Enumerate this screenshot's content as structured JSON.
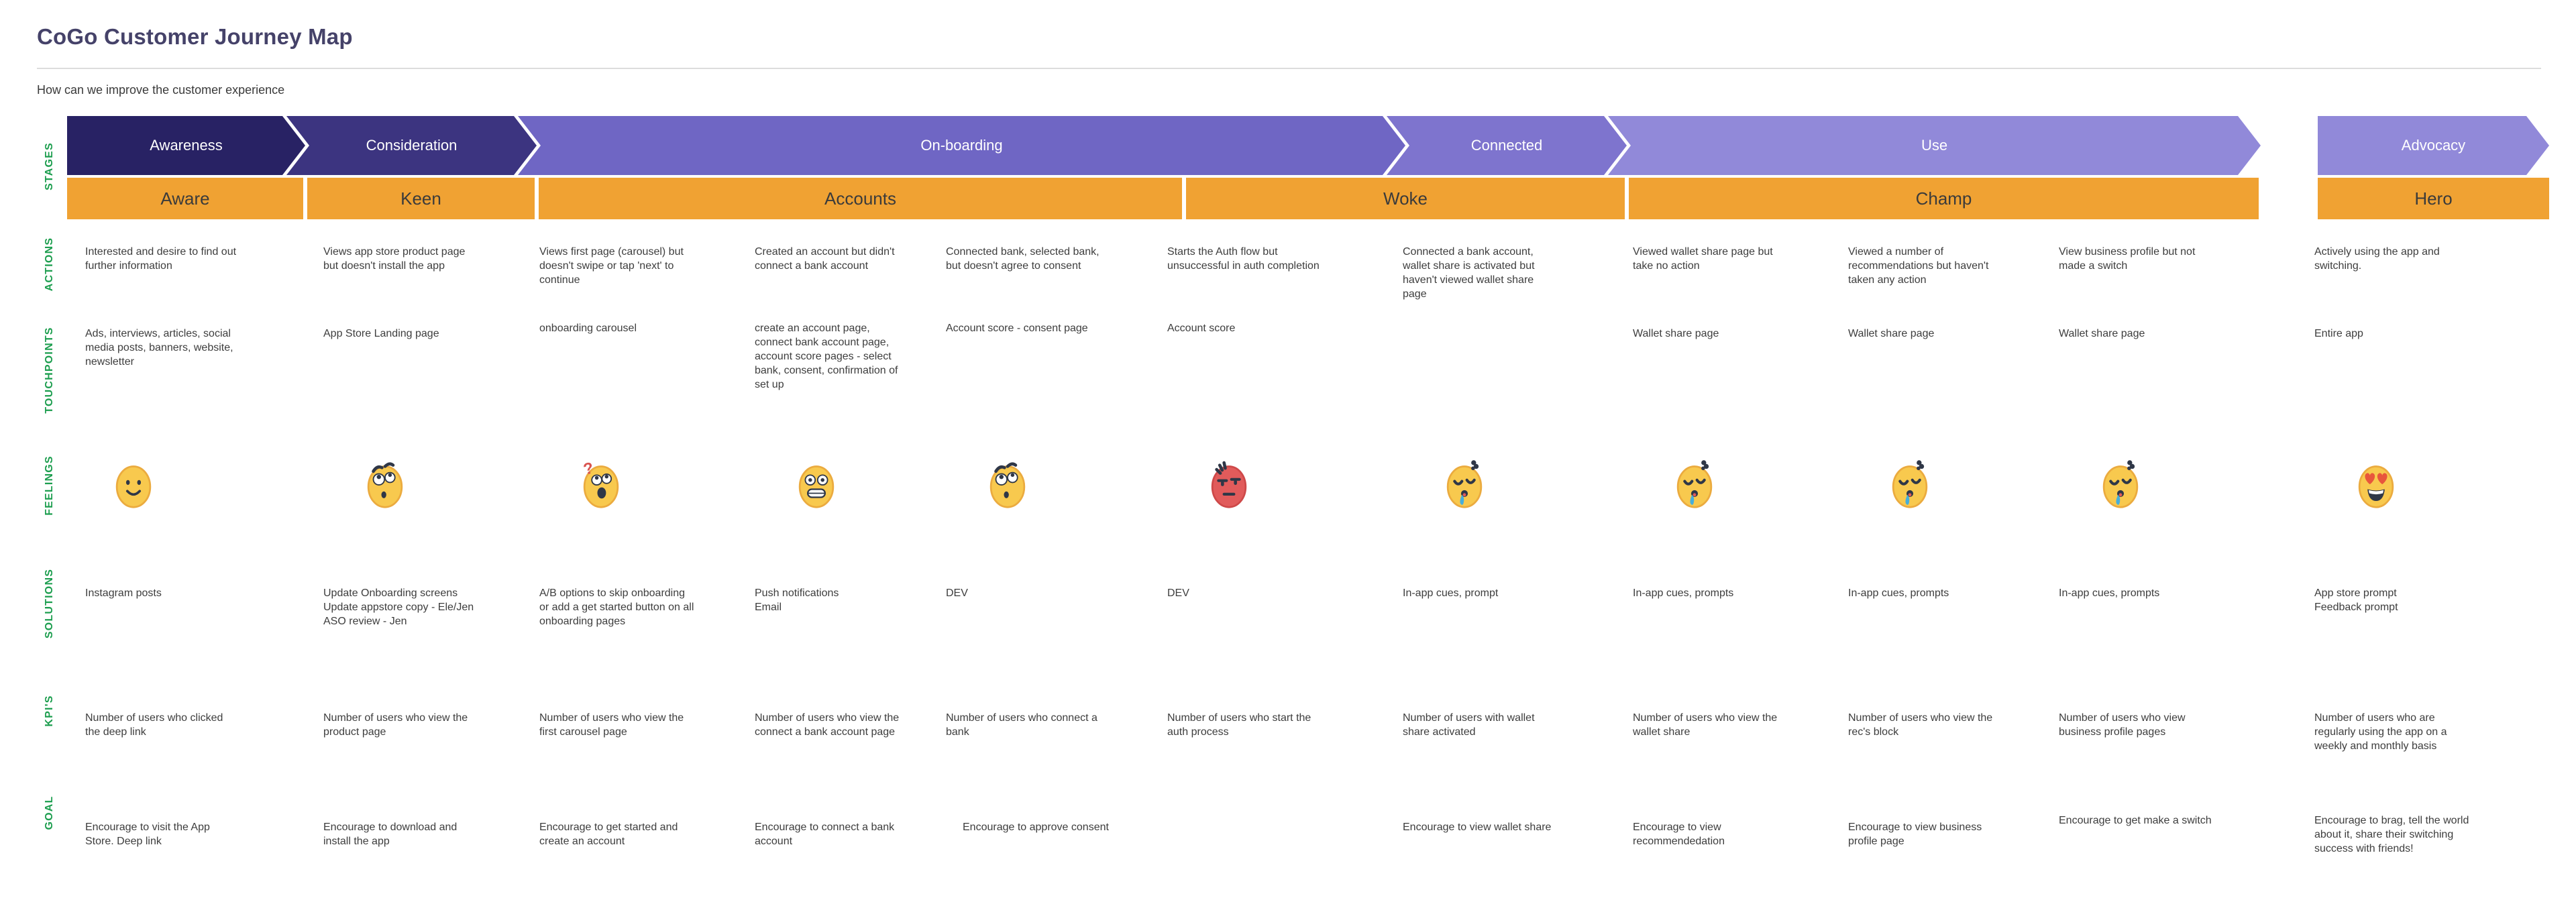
{
  "header": {
    "title": "CoGo Customer Journey Map",
    "subtitle": "How can we improve the customer experience"
  },
  "row_labels": [
    "STAGES",
    "ACTIONS",
    "TOUCHPOINTS",
    "FEELINGS",
    "SOLUTIONS",
    "KPI'S",
    "GOAL"
  ],
  "colors": {
    "stage_awareness": "#282264",
    "stage_consideration": "#3c3480",
    "stage_onboarding": "#6f66c4",
    "stage_connected": "#7e74ce",
    "stage_use": "#9189d9",
    "stage_advocacy": "#9189d9",
    "phase_bg": "#f0a233",
    "label_green": "#1d9e4f",
    "title_text": "#454269",
    "body_text": "#3d3d3d"
  },
  "stages": [
    {
      "label": "Awareness"
    },
    {
      "label": "Consideration"
    },
    {
      "label": "On-boarding"
    },
    {
      "label": "Connected"
    },
    {
      "label": "Use"
    },
    {
      "label": "Advocacy"
    }
  ],
  "phases": [
    {
      "label": "Aware"
    },
    {
      "label": "Keen"
    },
    {
      "label": "Accounts"
    },
    {
      "label": "Woke"
    },
    {
      "label": "Champ"
    },
    {
      "label": "Hero"
    }
  ],
  "columns": [
    {
      "action": "Interested and desire to find out further information",
      "touchpoint": "Ads, interviews, articles, social media posts, banners, website, newsletter",
      "feeling": "slight-smile",
      "solution": "Instagram posts",
      "kpi": "Number of users who clicked the deep link",
      "goal": "Encourage to visit the App Store. Deep link"
    },
    {
      "action": "Views app store product page but doesn't install the app",
      "touchpoint": "App Store Landing page",
      "feeling": "surprised",
      "solution": "Update Onboarding screens\nUpdate appstore copy - Ele/Jen\nASO review - Jen",
      "kpi": "Number of users who view the product page",
      "goal": "Encourage to download and install the app"
    },
    {
      "action": "Views first page (carousel) but doesn't swipe or tap 'next' to continue",
      "touchpoint": "onboarding carousel",
      "feeling": "confused",
      "solution": "A/B options to skip onboarding or add a get started button on all onboarding pages",
      "kpi": "Number of users who view the first carousel page",
      "goal": "Encourage to get started and create an account"
    },
    {
      "action": "Created an account but didn't connect a bank account",
      "touchpoint": "create an account page, connect bank account page, account score pages - select bank, consent, confirmation of set up",
      "feeling": "grimacing",
      "solution": "Push notifications\nEmail",
      "kpi": "Number of users who view the connect a bank account page",
      "goal": "Encourage to connect a bank account"
    },
    {
      "action": "Connected bank, selected bank, but doesn't agree to consent",
      "touchpoint": "Account score - consent page",
      "feeling": "surprised",
      "solution": "DEV",
      "kpi": "Number of users who connect a bank",
      "goal": "Encourage to approve consent"
    },
    {
      "action": "Starts the Auth flow but unsuccessful in auth completion",
      "touchpoint": "Account score",
      "feeling": "angry",
      "solution": "DEV",
      "kpi": "Number of users who start the auth process",
      "goal": ""
    },
    {
      "action": "Connected a bank account, wallet share is activated but haven't viewed wallet share page",
      "touchpoint": "",
      "feeling": "drooling",
      "solution": "In-app cues, prompt",
      "kpi": "Number of users with wallet share activated",
      "goal": "Encourage to view wallet share"
    },
    {
      "action": "Viewed wallet share page but take no action",
      "touchpoint": "Wallet share page",
      "feeling": "drooling",
      "solution": "In-app cues, prompts",
      "kpi": "Number of users who view the wallet share",
      "goal": "Encourage to view recommendedation"
    },
    {
      "action": "Viewed a number of recommendations but haven't taken any action",
      "touchpoint": "Wallet share page",
      "feeling": "drooling",
      "solution": "In-app cues, prompts",
      "kpi": "Number of users who view the rec's block",
      "goal": "Encourage to view business profile page"
    },
    {
      "action": "View business profile but not made a switch",
      "touchpoint": "Wallet share page",
      "feeling": "drooling",
      "solution": "In-app cues, prompts",
      "kpi": "Number of users who view business profile pages",
      "goal": "Encourage to get make a switch"
    },
    {
      "action": "Actively using the app and switching.",
      "touchpoint": "Entire app",
      "feeling": "heart-eyes",
      "solution": "App store prompt\nFeedback prompt",
      "kpi": "Number of users who are regularly using the app on a weekly and monthly basis",
      "goal": "Encourage to brag, tell the world about it, share their switching success with friends!"
    }
  ]
}
